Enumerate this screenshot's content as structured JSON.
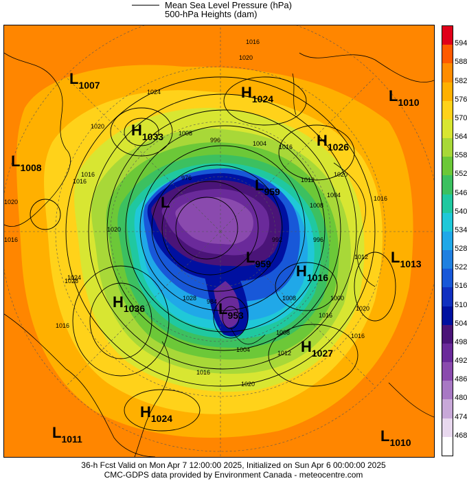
{
  "legend": {
    "line_label": "Mean Sea Level Pressure (hPa)",
    "fill_label": "500-hPa Heights (dam)"
  },
  "colorbar": {
    "labels": [
      "594",
      "588",
      "582",
      "576",
      "570",
      "564",
      "558",
      "552",
      "546",
      "540",
      "534",
      "528",
      "522",
      "516",
      "510",
      "504",
      "498",
      "492",
      "486",
      "480",
      "474",
      "468"
    ],
    "colors": [
      "#e0001a",
      "#ff5a00",
      "#ff8c00",
      "#ffb000",
      "#ffd21a",
      "#d8e632",
      "#a8d838",
      "#6cc838",
      "#3cc060",
      "#20c8a0",
      "#20c8d8",
      "#20a8e8",
      "#2080e0",
      "#1858d8",
      "#1030c0",
      "#0010a0",
      "#4a1478",
      "#6a2a9a",
      "#8a4aae",
      "#a878c4",
      "#c8a8d8",
      "#e8d8ee",
      "#ffffff"
    ]
  },
  "pressure_centers": [
    {
      "type": "L",
      "value": "1007"
    },
    {
      "type": "H",
      "value": "1024"
    },
    {
      "type": "L",
      "value": "1010"
    },
    {
      "type": "H",
      "value": "1033"
    },
    {
      "type": "H",
      "value": "1026"
    },
    {
      "type": "L",
      "value": "1008"
    },
    {
      "type": "L",
      "value": "959"
    },
    {
      "type": "L",
      "value": ""
    },
    {
      "type": "L",
      "value": "959"
    },
    {
      "type": "L",
      "value": "1013"
    },
    {
      "type": "H",
      "value": "1016"
    },
    {
      "type": "H",
      "value": "1036"
    },
    {
      "type": "L",
      "value": "953"
    },
    {
      "type": "H",
      "value": "1027"
    },
    {
      "type": "H",
      "value": "1024"
    },
    {
      "type": "L",
      "value": "1011"
    },
    {
      "type": "L",
      "value": "1010"
    }
  ],
  "isobar_labels": [
    "1016",
    "1020",
    "1024",
    "1020",
    "1016",
    "1016",
    "1008",
    "996",
    "1004",
    "1016",
    "1012",
    "1020",
    "1008",
    "1004",
    "1016",
    "1020",
    "1016",
    "1020",
    "976",
    "992",
    "996",
    "1000",
    "1008",
    "1016",
    "1020",
    "1024",
    "1028",
    "1012",
    "1016",
    "1028",
    "984",
    "1004",
    "1008",
    "1012",
    "1020",
    "1016",
    "1020",
    "1016"
  ],
  "footer": {
    "line1": "36-h Fcst Valid on Mon Apr  7 12:00:00 2025, Initialized on Sun Apr  6 00:00:00 2025",
    "line2": "CMC-GDPS data provided by Environment Canada - meteocentre.com"
  }
}
